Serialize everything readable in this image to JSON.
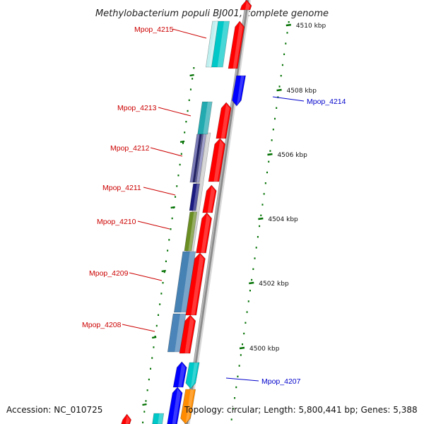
{
  "title": "Methylobacterium populi BJ001, complete genome",
  "accession": "Accession: NC_010725",
  "topology": "Topology: circular; Length: 5,800,441 bp; Genes: 5,388",
  "colors": {
    "forward_gene": "#ff0000",
    "reverse_gene": "#0000ff",
    "cyan_feature": "#00c8c8",
    "steel_feature": "#4682b4",
    "navy_feature": "#1a1a80",
    "olive_feature": "#6b8e23",
    "orange_feature": "#ff8c00",
    "tick_green": "#007000",
    "backbone_gray": "#8c8c8c",
    "label_red": "#cc0000",
    "label_blue": "#0000cc"
  },
  "scale_ticks": [
    "4510 kbp",
    "4508 kbp",
    "4506 kbp",
    "4504 kbp",
    "4502 kbp",
    "4500 kbp"
  ],
  "forward_labels": [
    "Mpop_4215",
    "Mpop_4213",
    "Mpop_4212",
    "Mpop_4211",
    "Mpop_4210",
    "Mpop_4209",
    "Mpop_4208"
  ],
  "reverse_labels": [
    "Mpop_4214",
    "Mpop_4207"
  ]
}
